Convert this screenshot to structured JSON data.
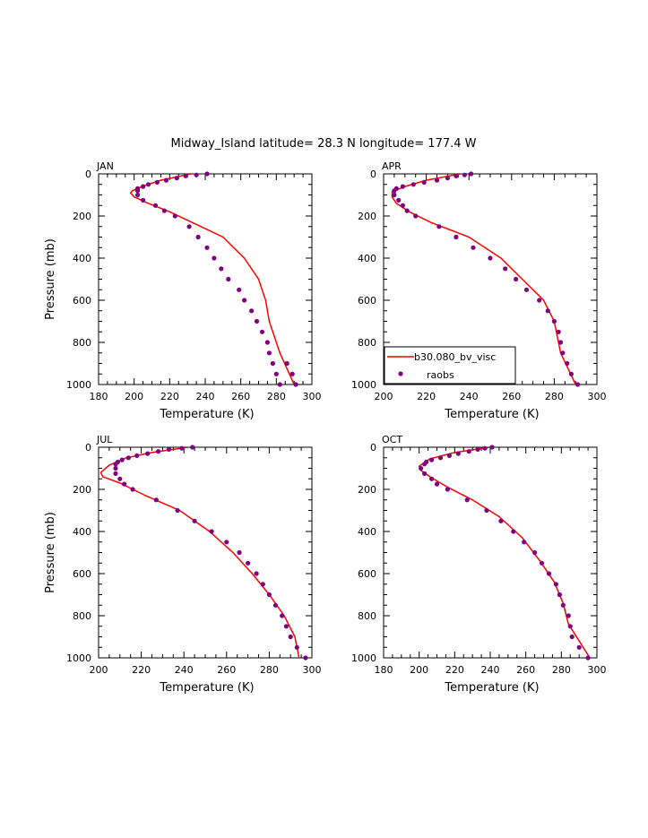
{
  "title": "Midway_Island  latitude= 28.3 N longitude= 177.4 W",
  "legend": {
    "model_label": "b30.080_bv_visc",
    "obs_label": "raobs",
    "model_color": "#ff0000",
    "obs_color": "#800080"
  },
  "chart_data": [
    {
      "type": "line",
      "panel": "JAN",
      "xlabel": "Temperature (K)",
      "ylabel": "Pressure (mb)",
      "xlim": [
        180,
        300
      ],
      "ylim": [
        1000,
        0
      ],
      "xticks": [
        180,
        200,
        220,
        240,
        260,
        280,
        300
      ],
      "yticks": [
        0,
        200,
        400,
        600,
        800,
        1000
      ],
      "series": [
        {
          "name": "b30.080_bv_visc",
          "x": [
            232,
            215,
            206,
            199,
            198,
            200,
            208,
            220,
            235,
            250,
            262,
            270,
            274,
            276,
            282,
            290
          ],
          "y": [
            0,
            30,
            55,
            80,
            90,
            110,
            140,
            180,
            240,
            300,
            400,
            500,
            600,
            700,
            850,
            1000
          ]
        },
        {
          "name": "raobs",
          "x": [
            241,
            235,
            229,
            224,
            218,
            213,
            208,
            205,
            202,
            202,
            202,
            205,
            212,
            217,
            223,
            231,
            236,
            241,
            245,
            249,
            253,
            259,
            262,
            266,
            269,
            272,
            275,
            276,
            278,
            280,
            282,
            286,
            289,
            291
          ],
          "y": [
            0,
            5,
            10,
            20,
            30,
            40,
            50,
            60,
            70,
            80,
            100,
            125,
            150,
            175,
            200,
            250,
            300,
            350,
            400,
            450,
            500,
            550,
            600,
            650,
            700,
            750,
            800,
            850,
            900,
            950,
            1000,
            900,
            950,
            1000
          ]
        }
      ]
    },
    {
      "type": "line",
      "panel": "APR",
      "xlabel": "Temperature (K)",
      "ylabel": "",
      "xlim": [
        200,
        300
      ],
      "ylim": [
        1000,
        0
      ],
      "xticks": [
        200,
        220,
        240,
        260,
        280,
        300
      ],
      "yticks": [
        0,
        200,
        400,
        600,
        800,
        1000
      ],
      "series": [
        {
          "name": "b30.080_bv_visc",
          "x": [
            236,
            220,
            210,
            204,
            204,
            206,
            212,
            222,
            240,
            255,
            265,
            275,
            280,
            283,
            290
          ],
          "y": [
            0,
            30,
            60,
            85,
            110,
            140,
            180,
            230,
            300,
            400,
            500,
            600,
            700,
            850,
            1000
          ]
        },
        {
          "name": "raobs",
          "x": [
            241,
            238,
            234,
            230,
            225,
            219,
            214,
            209,
            206,
            205,
            205,
            207,
            209,
            211,
            215,
            226,
            234,
            242,
            250,
            257,
            262,
            267,
            273,
            277,
            280,
            282,
            283,
            284,
            286,
            288,
            291
          ],
          "y": [
            0,
            5,
            10,
            20,
            30,
            40,
            50,
            60,
            70,
            80,
            100,
            125,
            150,
            175,
            200,
            250,
            300,
            350,
            400,
            450,
            500,
            550,
            600,
            650,
            700,
            750,
            800,
            850,
            900,
            950,
            1000
          ]
        }
      ]
    },
    {
      "type": "line",
      "panel": "JUL",
      "xlabel": "Temperature (K)",
      "ylabel": "Pressure (mb)",
      "xlim": [
        200,
        300
      ],
      "ylim": [
        1000,
        0
      ],
      "xticks": [
        200,
        220,
        240,
        260,
        280,
        300
      ],
      "yticks": [
        0,
        200,
        400,
        600,
        800,
        1000
      ],
      "series": [
        {
          "name": "b30.080_bv_visc",
          "x": [
            242,
            225,
            213,
            205,
            201,
            202,
            210,
            222,
            238,
            252,
            263,
            272,
            280,
            287,
            292,
            294
          ],
          "y": [
            0,
            25,
            50,
            85,
            120,
            140,
            170,
            230,
            300,
            400,
            500,
            600,
            700,
            800,
            900,
            1000
          ]
        },
        {
          "name": "raobs",
          "x": [
            244,
            239,
            233,
            228,
            223,
            218,
            214,
            211,
            209,
            208,
            208,
            208,
            210,
            212,
            216,
            227,
            237,
            245,
            253,
            260,
            266,
            270,
            274,
            277,
            280,
            283,
            286,
            288,
            290,
            293,
            297
          ],
          "y": [
            0,
            5,
            10,
            20,
            30,
            40,
            50,
            60,
            70,
            80,
            100,
            125,
            150,
            175,
            200,
            250,
            300,
            350,
            400,
            450,
            500,
            550,
            600,
            650,
            700,
            750,
            800,
            850,
            900,
            950,
            1000
          ]
        }
      ]
    },
    {
      "type": "line",
      "panel": "OCT",
      "xlabel": "Temperature (K)",
      "ylabel": "",
      "xlim": [
        180,
        300
      ],
      "ylim": [
        1000,
        0
      ],
      "xticks": [
        180,
        200,
        220,
        240,
        260,
        280,
        300
      ],
      "yticks": [
        0,
        200,
        400,
        600,
        800,
        1000
      ],
      "series": [
        {
          "name": "b30.080_bv_visc",
          "x": [
            240,
            220,
            206,
            200,
            201,
            206,
            216,
            230,
            245,
            258,
            268,
            276,
            281,
            284,
            290,
            296
          ],
          "y": [
            0,
            25,
            55,
            90,
            110,
            140,
            190,
            250,
            330,
            430,
            540,
            640,
            740,
            840,
            920,
            1000
          ]
        },
        {
          "name": "raobs",
          "x": [
            241,
            237,
            233,
            228,
            222,
            217,
            212,
            207,
            204,
            203,
            201,
            203,
            207,
            210,
            216,
            227,
            238,
            246,
            253,
            259,
            265,
            269,
            273,
            277,
            279,
            281,
            284,
            285,
            286,
            290,
            295
          ],
          "y": [
            0,
            5,
            10,
            20,
            30,
            40,
            50,
            60,
            70,
            80,
            100,
            125,
            150,
            175,
            200,
            250,
            300,
            350,
            400,
            450,
            500,
            550,
            600,
            650,
            700,
            750,
            800,
            850,
            900,
            950,
            1000
          ]
        }
      ]
    }
  ]
}
